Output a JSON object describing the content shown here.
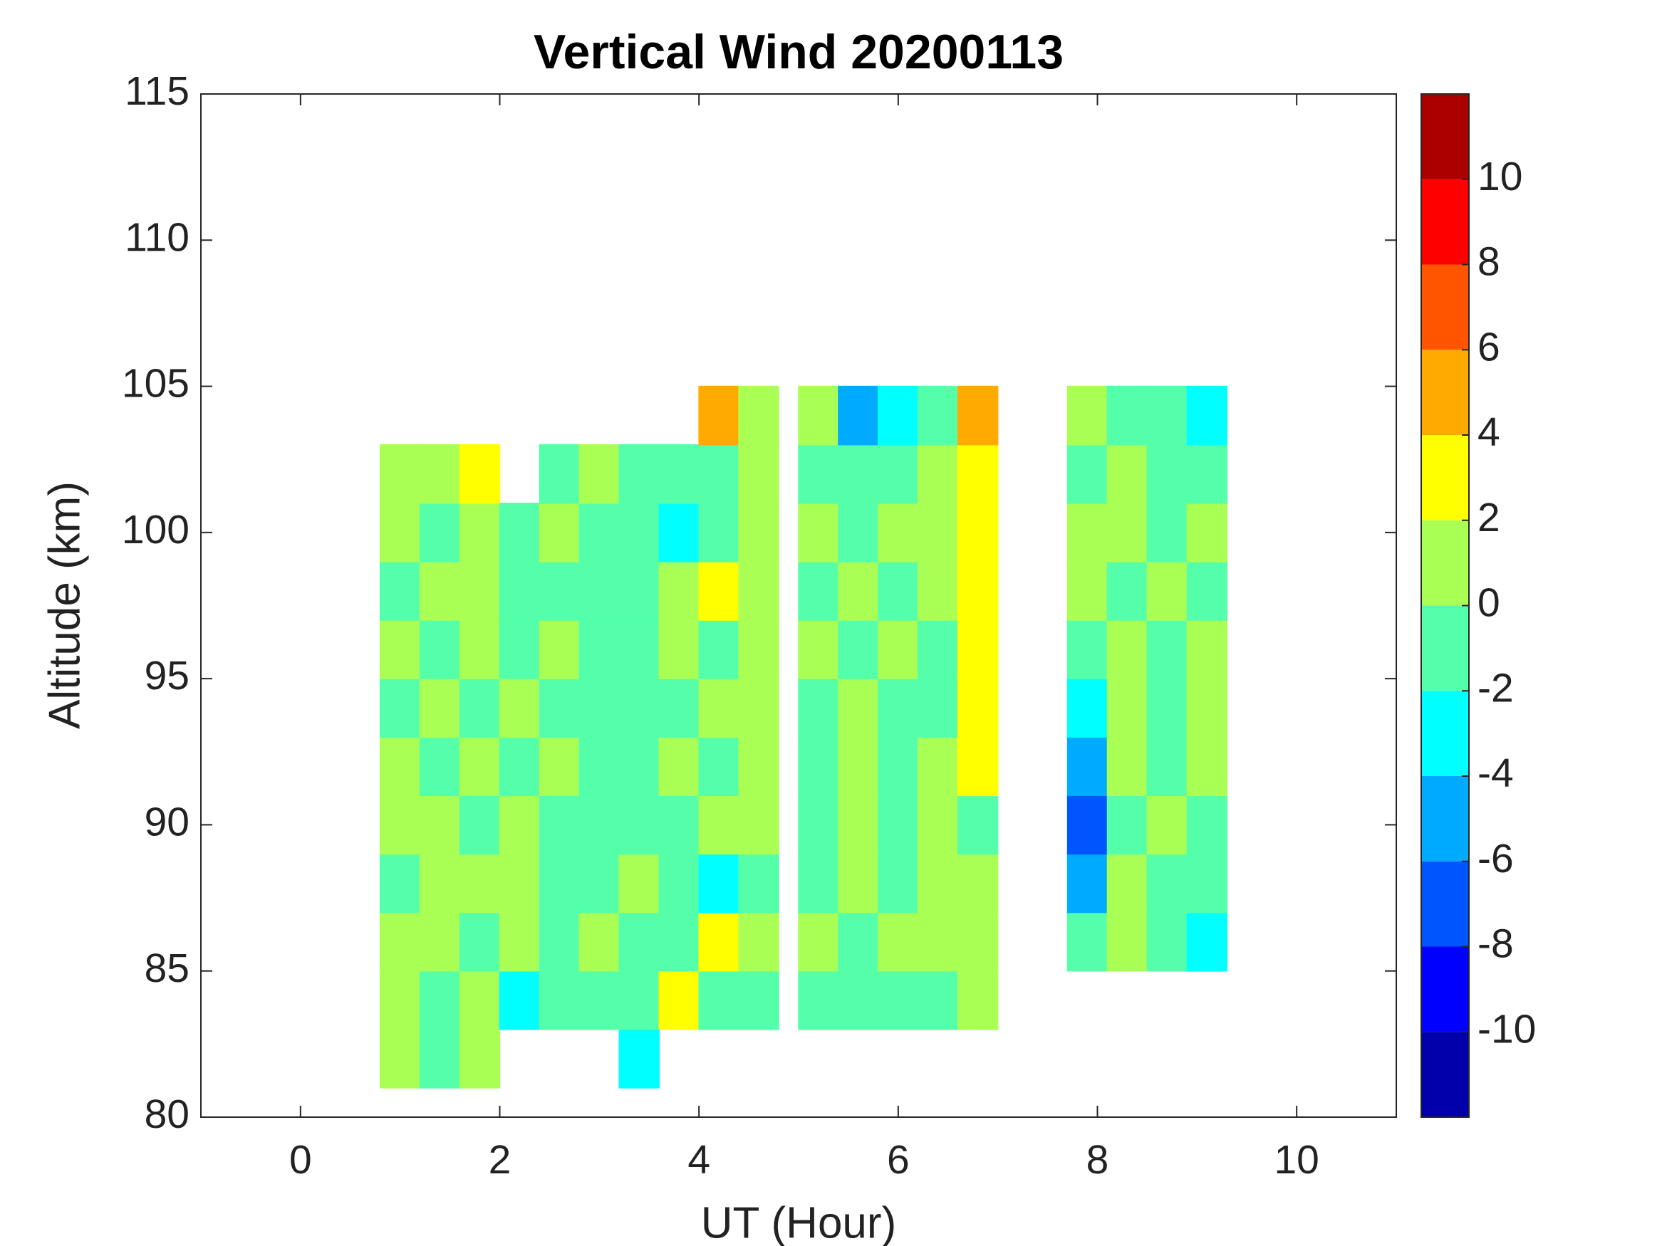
{
  "chart_data": {
    "type": "contour",
    "title": "Vertical Wind 20200113",
    "x_label": "UT (Hour)",
    "y_label": "Altitude (km)",
    "x": [
      1.0,
      1.4,
      1.8,
      2.2,
      2.6,
      3.0,
      3.4,
      3.8,
      4.2,
      4.6,
      5.2,
      5.6,
      6.0,
      6.4,
      6.8,
      7.9,
      8.3,
      8.7,
      9.1
    ],
    "y": [
      82,
      84,
      86,
      88,
      90,
      92,
      94,
      96,
      98,
      100,
      102,
      104
    ],
    "z": [
      [
        0.5,
        -0.5,
        0.8,
        null,
        null,
        null,
        -3,
        null,
        null,
        null,
        null,
        null,
        null,
        null,
        null,
        null,
        null,
        null,
        null
      ],
      [
        1.2,
        -1,
        0.5,
        -2.5,
        -1,
        -0.5,
        -1.5,
        2.5,
        -1,
        -1.5,
        -0.5,
        -0.8,
        -1.5,
        -0.5,
        0.5,
        null,
        null,
        null,
        null
      ],
      [
        0.8,
        0.5,
        -0.5,
        0.6,
        -1.2,
        1.0,
        -0.8,
        -0.5,
        2.5,
        1.2,
        0.8,
        -1,
        0.6,
        1.5,
        0.8,
        -0.6,
        1.2,
        -0.8,
        -2.5
      ],
      [
        -0.5,
        1,
        1.2,
        0.5,
        -0.8,
        -0.5,
        0.8,
        -1.2,
        -2.5,
        -0.5,
        -0.8,
        1.2,
        -0.5,
        0.8,
        0.5,
        -4.5,
        0.5,
        -1,
        -0.6
      ],
      [
        0.8,
        0.6,
        -0.5,
        1.2,
        -0.8,
        -1.2,
        -0.5,
        -0.8,
        1.2,
        0.5,
        -1,
        0.8,
        -0.8,
        1.2,
        -0.5,
        -6.5,
        -0.8,
        0.6,
        -1
      ],
      [
        1.2,
        -0.6,
        0.8,
        -0.5,
        0.6,
        -1,
        -1.2,
        0.5,
        -0.6,
        1.2,
        -0.8,
        0.5,
        -1.2,
        0.6,
        2.5,
        -4.5,
        0.5,
        -1,
        0.8
      ],
      [
        -0.8,
        1,
        -0.6,
        0.8,
        -1,
        -1.5,
        -1.2,
        -0.5,
        1,
        0.6,
        -0.6,
        1.2,
        -1,
        -0.5,
        2.8,
        -3,
        1,
        -0.8,
        0.5
      ],
      [
        1,
        -0.5,
        1.2,
        -0.8,
        0.6,
        -0.8,
        -1.5,
        0.8,
        -1.2,
        1.5,
        0.8,
        -0.5,
        0.8,
        -0.6,
        3.2,
        -0.8,
        0.6,
        -0.5,
        1.2
      ],
      [
        -0.6,
        1.2,
        0.5,
        -1.2,
        -1,
        -0.5,
        -1,
        1.2,
        2.5,
        1,
        -0.5,
        0.8,
        -0.8,
        1.2,
        3.5,
        0.5,
        -0.8,
        1.2,
        -0.6
      ],
      [
        0.8,
        -0.5,
        1,
        -0.8,
        0.6,
        -1,
        -0.8,
        -2.5,
        -0.6,
        0.8,
        0.6,
        -0.5,
        0.8,
        0.5,
        3.2,
        1.2,
        0.5,
        -0.8,
        0.6
      ],
      [
        1.2,
        0.8,
        2.5,
        null,
        -0.6,
        0.8,
        -0.5,
        -1.2,
        -0.8,
        0.6,
        -0.8,
        -0.6,
        -0.8,
        1,
        2.5,
        -0.5,
        1,
        -0.6,
        -1.2
      ],
      [
        null,
        null,
        null,
        null,
        null,
        null,
        null,
        null,
        5,
        0.8,
        1.2,
        -5,
        -3,
        -0.5,
        4.5,
        1,
        -0.5,
        -1,
        -2.5
      ]
    ],
    "xlim": [
      -1,
      11
    ],
    "xticks": [
      0,
      2,
      4,
      6,
      8,
      10
    ],
    "ylim": [
      80,
      115
    ],
    "yticks": [
      80,
      85,
      90,
      95,
      100,
      105,
      110,
      115
    ],
    "colorbar": {
      "lim": [
        -12,
        12
      ],
      "ticks": [
        -10,
        -8,
        -6,
        -4,
        -2,
        0,
        2,
        4,
        6,
        8,
        10
      ],
      "colors": [
        "#0000aa",
        "#0000ff",
        "#0055ff",
        "#00aaff",
        "#00ffff",
        "#55ffaa",
        "#aaff55",
        "#ffff00",
        "#ffaa00",
        "#ff5500",
        "#ff0000",
        "#aa0000"
      ]
    }
  }
}
